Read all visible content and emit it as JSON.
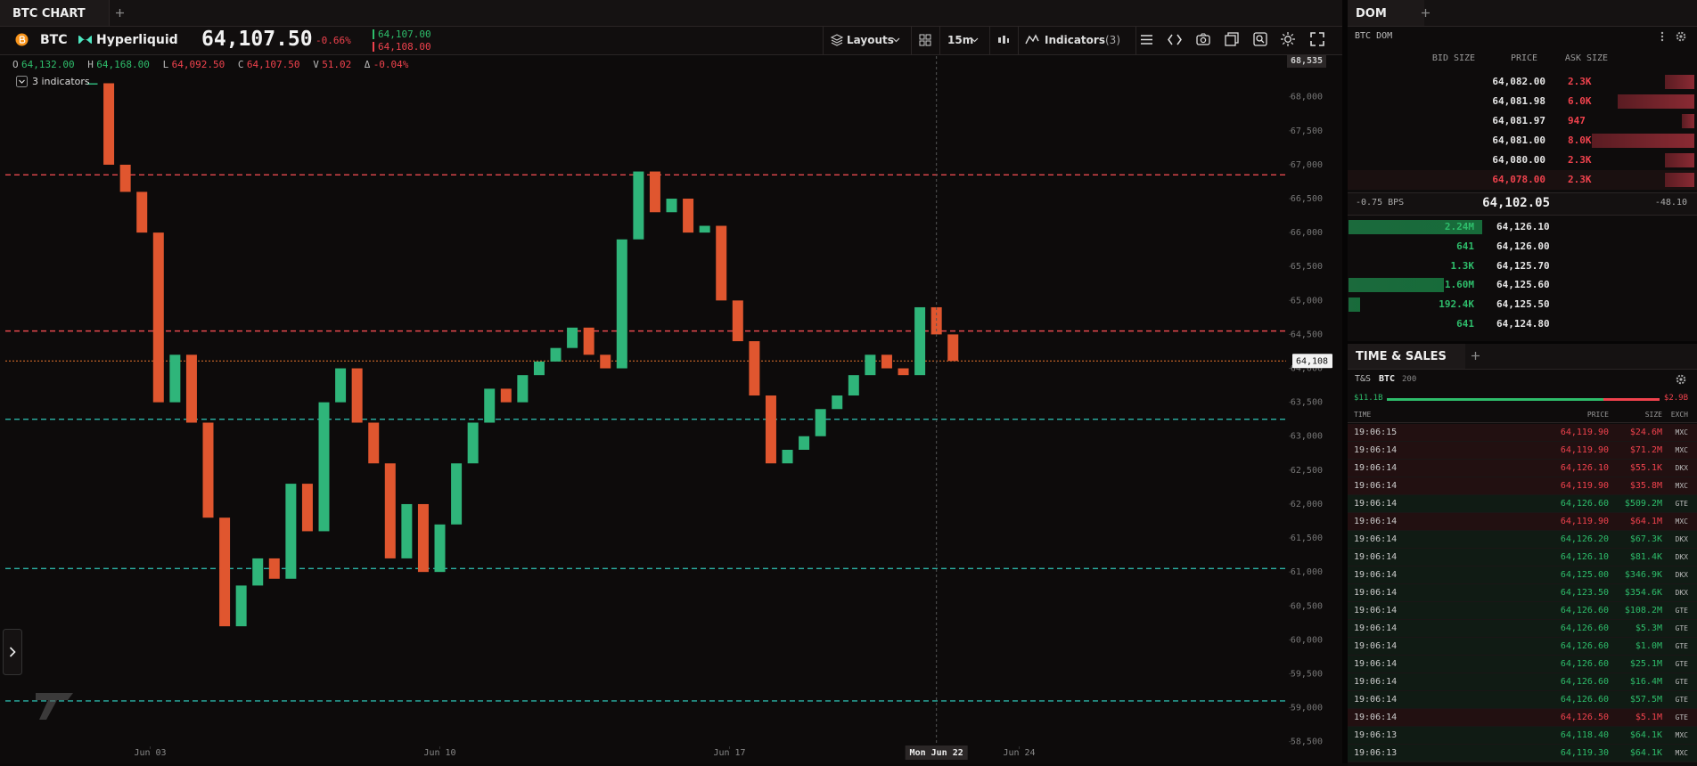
{
  "tabs": {
    "chart": "BTC CHART",
    "dom": "DOM",
    "time_sales": "TIME & SALES"
  },
  "toolbar": {
    "symbol": "BTC",
    "exchange": "Hyperliquid",
    "price": "64,107.50",
    "change": "-0.66%",
    "bid": "64,107.00",
    "ask": "64,108.00",
    "layouts": "Layouts",
    "interval": "15m",
    "indicators": "Indicators",
    "indicator_count": "(3)"
  },
  "ohlc": [
    {
      "key": "O",
      "value": "64,132.00",
      "color": "#2ebd6b"
    },
    {
      "key": "H",
      "value": "64,168.00",
      "color": "#2ebd6b"
    },
    {
      "key": "L",
      "value": "64,092.50",
      "color": "#f0424d"
    },
    {
      "key": "C",
      "value": "64,107.50",
      "color": "#f0424d"
    },
    {
      "key": "V",
      "value": "51.02",
      "color": "#f0424d"
    },
    {
      "key": "Δ",
      "value": "-0.04%",
      "color": "#f0424d"
    }
  ],
  "indicators_label": "3 indicators",
  "chart_data": {
    "type": "candlestick",
    "up_color": "#2fb57a",
    "down_color": "#e0562f",
    "x": [
      1.6,
      2.0,
      2.4,
      2.8,
      3.2,
      3.6,
      4.0,
      4.4,
      4.8,
      5.2,
      5.6,
      6.0,
      6.4,
      6.8,
      7.2,
      7.6,
      8.0,
      8.4,
      8.8,
      9.2,
      9.6,
      10.0,
      10.4,
      10.8,
      11.2,
      11.6,
      12.0,
      12.4,
      12.8,
      13.2,
      13.6,
      14.0,
      14.4,
      14.8,
      15.2,
      15.6,
      16.0,
      16.4,
      16.8,
      17.2,
      17.6,
      18.0,
      18.4,
      18.8,
      19.2,
      19.6,
      20.0,
      20.4,
      20.8,
      21.2,
      21.6,
      22.0,
      22.4
    ],
    "values": [
      68200,
      67000,
      66600,
      66000,
      63500,
      64200,
      63200,
      61800,
      60200,
      60800,
      61200,
      60900,
      62300,
      61600,
      63500,
      64000,
      63200,
      62600,
      61200,
      62000,
      61000,
      61700,
      62600,
      63200,
      63700,
      63500,
      63900,
      64100,
      64300,
      64600,
      64200,
      64000,
      65900,
      66900,
      66300,
      66500,
      66000,
      66100,
      65000,
      64400,
      63600,
      62600,
      62800,
      63000,
      63400,
      63600,
      63900,
      64200,
      64000,
      63900,
      64900,
      64500,
      64108
    ],
    "xlim": [
      -0.5,
      30.45
    ],
    "xticks": [
      {
        "value": 3,
        "label": "Jun 03"
      },
      {
        "value": 10,
        "label": "Jun 10"
      },
      {
        "value": 17,
        "label": "Jun 17"
      },
      {
        "value": 24,
        "label": "Jun 24"
      }
    ],
    "ylim": [
      58430,
      68600
    ],
    "yticks": [
      {
        "value": 58500,
        "label": "58,500"
      },
      {
        "value": 59000,
        "label": "59,000"
      },
      {
        "value": 59500,
        "label": "59,500"
      },
      {
        "value": 60000,
        "label": "60,000"
      },
      {
        "value": 60500,
        "label": "60,500"
      },
      {
        "value": 61000,
        "label": "61,000"
      },
      {
        "value": 61500,
        "label": "61,500"
      },
      {
        "value": 62000,
        "label": "62,000"
      },
      {
        "value": 62500,
        "label": "62,500"
      },
      {
        "value": 63000,
        "label": "63,000"
      },
      {
        "value": 63500,
        "label": "63,500"
      },
      {
        "value": 64000,
        "label": "64,000"
      },
      {
        "value": 64500,
        "label": "64,500"
      },
      {
        "value": 65000,
        "label": "65,000"
      },
      {
        "value": 65500,
        "label": "65,500"
      },
      {
        "value": 66000,
        "label": "66,000"
      },
      {
        "value": 66500,
        "label": "66,500"
      },
      {
        "value": 67000,
        "label": "67,000"
      },
      {
        "value": 67500,
        "label": "67,500"
      },
      {
        "value": 68000,
        "label": "68,000"
      }
    ],
    "levels": [
      {
        "value": 66850,
        "color": "#e5484d"
      },
      {
        "value": 64550,
        "color": "#e5484d"
      },
      {
        "value": 63250,
        "color": "#2bb3a6"
      },
      {
        "value": 61050,
        "color": "#2bb3a6"
      },
      {
        "value": 59100,
        "color": "#2bb3a6"
      }
    ],
    "last_price": {
      "value": 64108,
      "label": "64,108",
      "color": "#e8742c"
    },
    "axis_top": {
      "value": 68535,
      "label": "68,535"
    },
    "crosshair": {
      "value": 22,
      "label": "Mon Jun 22"
    },
    "grid": false
  },
  "dom": {
    "title": "BTC DOM",
    "headers": [
      "BID SIZE",
      "PRICE",
      "ASK SIZE"
    ],
    "asks": [
      {
        "price": "64,082.00",
        "size": {
          "value": 2300,
          "label": "2.3K"
        },
        "price_color": "#e6e6e6"
      },
      {
        "price": "64,081.98",
        "size": {
          "value": 6000,
          "label": "6.0K"
        },
        "price_color": "#e6e6e6"
      },
      {
        "price": "64,081.97",
        "size": {
          "value": 947,
          "label": "947"
        },
        "price_color": "#e6e6e6"
      },
      {
        "price": "64,081.00",
        "size": {
          "value": 8000,
          "label": "8.0K"
        },
        "price_color": "#e6e6e6"
      },
      {
        "price": "64,080.00",
        "size": {
          "value": 2300,
          "label": "2.3K"
        },
        "price_color": "#e6e6e6"
      },
      {
        "price": "64,078.00",
        "size": {
          "value": 2300,
          "label": "2.3K"
        },
        "price_color": "#f0424d"
      }
    ],
    "spread": {
      "bps": "-0.75 BPS",
      "mid": "64,102.05",
      "delta": "-48.10"
    },
    "bids": [
      {
        "size": {
          "value": 2240000,
          "label": "2.24M"
        },
        "price": "64,126.10"
      },
      {
        "size": {
          "value": 641,
          "label": "641"
        },
        "price": "64,126.00"
      },
      {
        "size": {
          "value": 1300,
          "label": "1.3K"
        },
        "price": "64,125.70"
      },
      {
        "size": {
          "value": 1600000,
          "label": "1.60M"
        },
        "price": "64,125.60"
      },
      {
        "size": {
          "value": 192400,
          "label": "192.4K"
        },
        "price": "64,125.50"
      },
      {
        "size": {
          "value": 641,
          "label": "641"
        },
        "price": "64,124.80"
      }
    ]
  },
  "time_sales": {
    "label": "T&S",
    "symbol": "BTC",
    "count": "200",
    "buy": {
      "value": 11100000000,
      "label": "$11.1B"
    },
    "sell": {
      "value": 2900000000,
      "label": "$2.9B"
    },
    "headers": [
      "TIME",
      "PRICE",
      "SIZE",
      "EXCH"
    ],
    "rows": [
      {
        "time": "19:06:15",
        "price": "64,119.90",
        "size": "$24.6M",
        "exch": "MXC",
        "color": "#f0424d"
      },
      {
        "time": "19:06:14",
        "price": "64,119.90",
        "size": "$71.2M",
        "exch": "MXC",
        "color": "#f0424d"
      },
      {
        "time": "19:06:14",
        "price": "64,126.10",
        "size": "$55.1K",
        "exch": "DKX",
        "color": "#f0424d"
      },
      {
        "time": "19:06:14",
        "price": "64,119.90",
        "size": "$35.8M",
        "exch": "MXC",
        "color": "#f0424d"
      },
      {
        "time": "19:06:14",
        "price": "64,126.60",
        "size": "$509.2M",
        "exch": "GTE",
        "color": "#2ebd6b"
      },
      {
        "time": "19:06:14",
        "price": "64,119.90",
        "size": "$64.1M",
        "exch": "MXC",
        "color": "#f0424d"
      },
      {
        "time": "19:06:14",
        "price": "64,126.20",
        "size": "$67.3K",
        "exch": "DKX",
        "color": "#2ebd6b"
      },
      {
        "time": "19:06:14",
        "price": "64,126.10",
        "size": "$81.4K",
        "exch": "DKX",
        "color": "#2ebd6b"
      },
      {
        "time": "19:06:14",
        "price": "64,125.00",
        "size": "$346.9K",
        "exch": "DKX",
        "color": "#2ebd6b"
      },
      {
        "time": "19:06:14",
        "price": "64,123.50",
        "size": "$354.6K",
        "exch": "DKX",
        "color": "#2ebd6b"
      },
      {
        "time": "19:06:14",
        "price": "64,126.60",
        "size": "$108.2M",
        "exch": "GTE",
        "color": "#2ebd6b"
      },
      {
        "time": "19:06:14",
        "price": "64,126.60",
        "size": "$5.3M",
        "exch": "GTE",
        "color": "#2ebd6b"
      },
      {
        "time": "19:06:14",
        "price": "64,126.60",
        "size": "$1.0M",
        "exch": "GTE",
        "color": "#2ebd6b"
      },
      {
        "time": "19:06:14",
        "price": "64,126.60",
        "size": "$25.1M",
        "exch": "GTE",
        "color": "#2ebd6b"
      },
      {
        "time": "19:06:14",
        "price": "64,126.60",
        "size": "$16.4M",
        "exch": "GTE",
        "color": "#2ebd6b"
      },
      {
        "time": "19:06:14",
        "price": "64,126.60",
        "size": "$57.5M",
        "exch": "GTE",
        "color": "#2ebd6b"
      },
      {
        "time": "19:06:14",
        "price": "64,126.50",
        "size": "$5.1M",
        "exch": "GTE",
        "color": "#f0424d"
      },
      {
        "time": "19:06:13",
        "price": "64,118.40",
        "size": "$64.1K",
        "exch": "MXC",
        "color": "#2ebd6b"
      },
      {
        "time": "19:06:13",
        "price": "64,119.30",
        "size": "$64.1K",
        "exch": "MXC",
        "color": "#2ebd6b"
      }
    ]
  }
}
